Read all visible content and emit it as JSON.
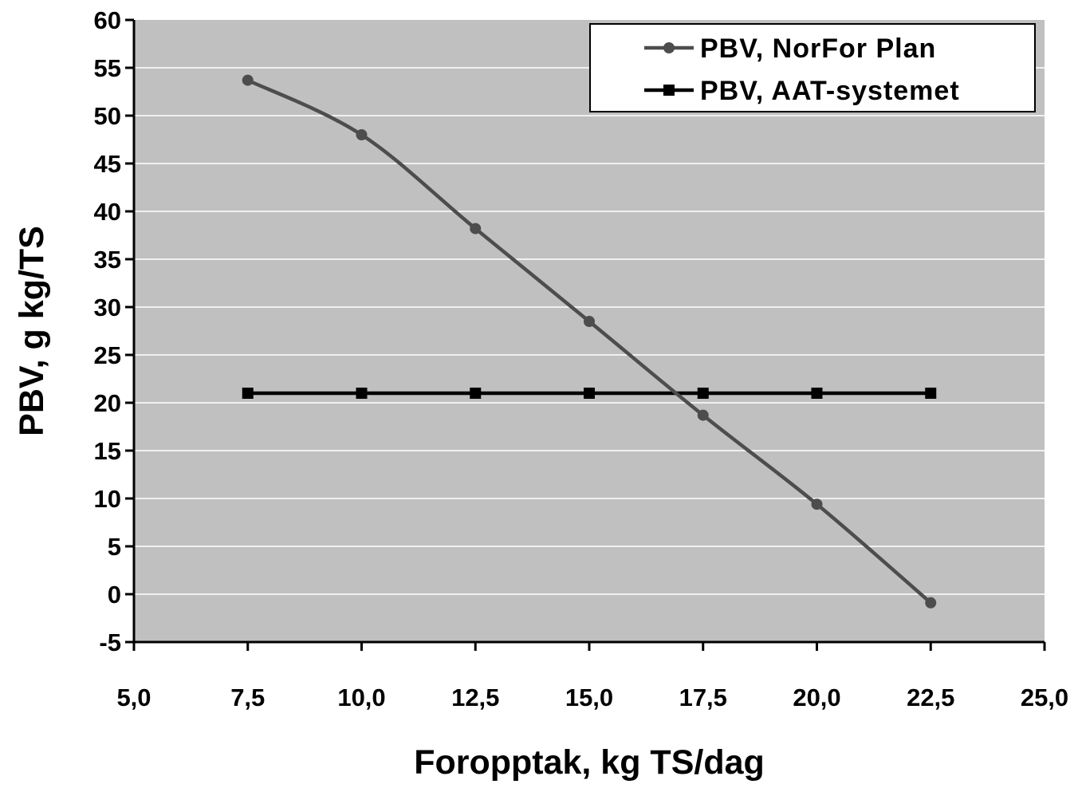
{
  "chart_data": {
    "type": "line",
    "title": "",
    "xlabel": "Foropptak, kg TS/dag",
    "ylabel": "PBV, g kg/TS",
    "xlim": [
      5.0,
      25.0
    ],
    "ylim": [
      -5,
      60
    ],
    "x_ticks": [
      "5,0",
      "7,5",
      "10,0",
      "12,5",
      "15,0",
      "17,5",
      "20,0",
      "22,5",
      "25,0"
    ],
    "y_ticks": [
      "-5",
      "0",
      "5",
      "10",
      "15",
      "20",
      "25",
      "30",
      "35",
      "40",
      "45",
      "50",
      "55",
      "60"
    ],
    "grid": "horizontal",
    "legend_position": "top-right",
    "colors": {
      "plot_bg": "#c0c0c0",
      "grid": "#ffffff",
      "series_1": "#4d4d4d",
      "series_2": "#000000"
    },
    "series": [
      {
        "name": "PBV, NorFor Plan",
        "marker": "circle",
        "x": [
          7.5,
          10.0,
          12.5,
          15.0,
          17.5,
          20.0,
          22.5
        ],
        "values": [
          53.7,
          48.0,
          38.2,
          28.5,
          18.7,
          9.4,
          -0.9
        ]
      },
      {
        "name": "PBV, AAT-systemet",
        "marker": "square",
        "x": [
          7.5,
          10.0,
          12.5,
          15.0,
          17.5,
          20.0,
          22.5
        ],
        "values": [
          21,
          21,
          21,
          21,
          21,
          21,
          21
        ]
      }
    ]
  }
}
